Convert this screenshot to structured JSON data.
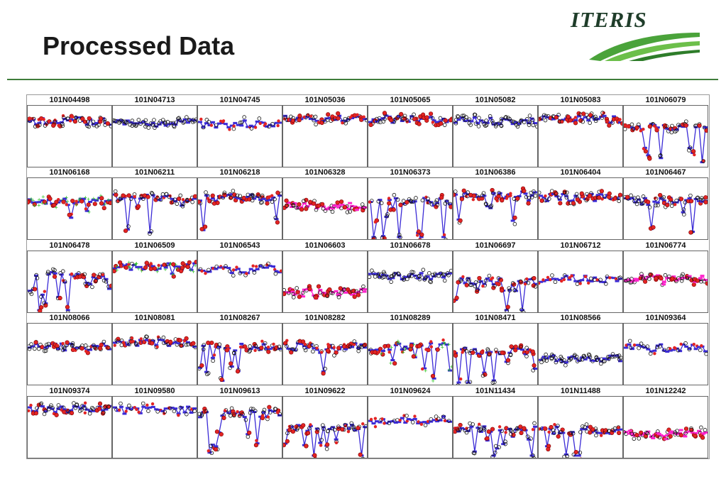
{
  "title": "Processed Data",
  "logo": {
    "text": "ITERIS",
    "colors": {
      "text": "#1f3d2a",
      "swoosh": "#4aa33a"
    }
  },
  "colors": {
    "rule": "#3f7d3a",
    "speed": "#3b2bd6",
    "mark": "#111111",
    "flag": "#e32424",
    "aux_green": "#22c11b",
    "aux_cyan": "#19d6e6",
    "aux_pink": "#ff22cc"
  },
  "chart_data": {
    "type": "scatter",
    "layout": "small-multiples 8 columns x 5 rows",
    "grid": false,
    "panels": [
      {
        "label": "101N04498",
        "style": "dense",
        "level": 0.75,
        "spread": 0.2,
        "seed": 1
      },
      {
        "label": "101N04713",
        "style": "black",
        "level": 0.72,
        "spread": 0.15,
        "seed": 2
      },
      {
        "label": "101N04745",
        "style": "flat",
        "level": 0.7,
        "spread": 0.1,
        "seed": 3
      },
      {
        "label": "101N05036",
        "style": "dense",
        "level": 0.78,
        "spread": 0.15,
        "seed": 4
      },
      {
        "label": "101N05065",
        "style": "dense",
        "level": 0.78,
        "spread": 0.15,
        "seed": 5
      },
      {
        "label": "101N05082",
        "style": "black",
        "level": 0.75,
        "spread": 0.12,
        "seed": 6
      },
      {
        "label": "101N05083",
        "style": "dense",
        "level": 0.78,
        "spread": 0.15,
        "seed": 7
      },
      {
        "label": "101N06079",
        "style": "spiky",
        "level": 0.65,
        "spread": 0.45,
        "seed": 8
      },
      {
        "label": "101N06168",
        "style": "green",
        "level": 0.62,
        "spread": 0.2,
        "seed": 9
      },
      {
        "label": "101N06211",
        "style": "spiky",
        "level": 0.68,
        "spread": 0.45,
        "seed": 10
      },
      {
        "label": "101N06218",
        "style": "spiky",
        "level": 0.68,
        "spread": 0.5,
        "seed": 11
      },
      {
        "label": "101N06328",
        "style": "pink",
        "level": 0.55,
        "spread": 0.25,
        "seed": 12
      },
      {
        "label": "101N06373",
        "style": "spiky",
        "level": 0.62,
        "spread": 0.55,
        "seed": 13
      },
      {
        "label": "101N06386",
        "style": "mixed",
        "level": 0.72,
        "spread": 0.3,
        "seed": 14
      },
      {
        "label": "101N06404",
        "style": "dense",
        "level": 0.68,
        "spread": 0.35,
        "seed": 15
      },
      {
        "label": "101N06467",
        "style": "spiky",
        "level": 0.62,
        "spread": 0.45,
        "seed": 16
      },
      {
        "label": "101N06478",
        "style": "spiky",
        "level": 0.6,
        "spread": 0.45,
        "seed": 17
      },
      {
        "label": "101N06509",
        "style": "green",
        "level": 0.75,
        "spread": 0.2,
        "seed": 18
      },
      {
        "label": "101N06543",
        "style": "flat",
        "level": 0.7,
        "spread": 0.15,
        "seed": 19
      },
      {
        "label": "101N06603",
        "style": "pink",
        "level": 0.32,
        "spread": 0.25,
        "seed": 20
      },
      {
        "label": "101N06678",
        "style": "black",
        "level": 0.6,
        "spread": 0.45,
        "seed": 21
      },
      {
        "label": "101N06697",
        "style": "spiky",
        "level": 0.5,
        "spread": 0.45,
        "seed": 22
      },
      {
        "label": "101N06712",
        "style": "flat",
        "level": 0.55,
        "spread": 0.35,
        "seed": 23
      },
      {
        "label": "101N06774",
        "style": "pink",
        "level": 0.55,
        "spread": 0.15,
        "seed": 24
      },
      {
        "label": "101N08066",
        "style": "dense",
        "level": 0.62,
        "spread": 0.3,
        "seed": 25
      },
      {
        "label": "101N08081",
        "style": "dense",
        "level": 0.68,
        "spread": 0.35,
        "seed": 26
      },
      {
        "label": "101N08267",
        "style": "mixed",
        "level": 0.62,
        "spread": 0.45,
        "seed": 27
      },
      {
        "label": "101N08282",
        "style": "spiky",
        "level": 0.62,
        "spread": 0.35,
        "seed": 28
      },
      {
        "label": "101N08289",
        "style": "green",
        "level": 0.62,
        "spread": 0.4,
        "seed": 29
      },
      {
        "label": "101N08471",
        "style": "spiky",
        "level": 0.55,
        "spread": 0.55,
        "seed": 30
      },
      {
        "label": "101N08566",
        "style": "black",
        "level": 0.42,
        "spread": 0.15,
        "seed": 31
      },
      {
        "label": "101N09364",
        "style": "flat",
        "level": 0.6,
        "spread": 0.12,
        "seed": 32
      },
      {
        "label": "101N09374",
        "style": "dense",
        "level": 0.8,
        "spread": 0.12,
        "seed": 33
      },
      {
        "label": "101N09580",
        "style": "flat",
        "level": 0.78,
        "spread": 0.3,
        "seed": 34
      },
      {
        "label": "101N09613",
        "style": "mixed",
        "level": 0.72,
        "spread": 0.5,
        "seed": 35
      },
      {
        "label": "101N09622",
        "style": "spiky",
        "level": 0.5,
        "spread": 0.4,
        "seed": 36
      },
      {
        "label": "101N09624",
        "style": "flat",
        "level": 0.62,
        "spread": 0.2,
        "seed": 37
      },
      {
        "label": "101N11434",
        "style": "spiky",
        "level": 0.48,
        "spread": 0.4,
        "seed": 38
      },
      {
        "label": "101N11488",
        "style": "spiky",
        "level": 0.45,
        "spread": 0.4,
        "seed": 39
      },
      {
        "label": "101N12242",
        "style": "pink",
        "level": 0.38,
        "spread": 0.3,
        "seed": 40
      }
    ]
  }
}
